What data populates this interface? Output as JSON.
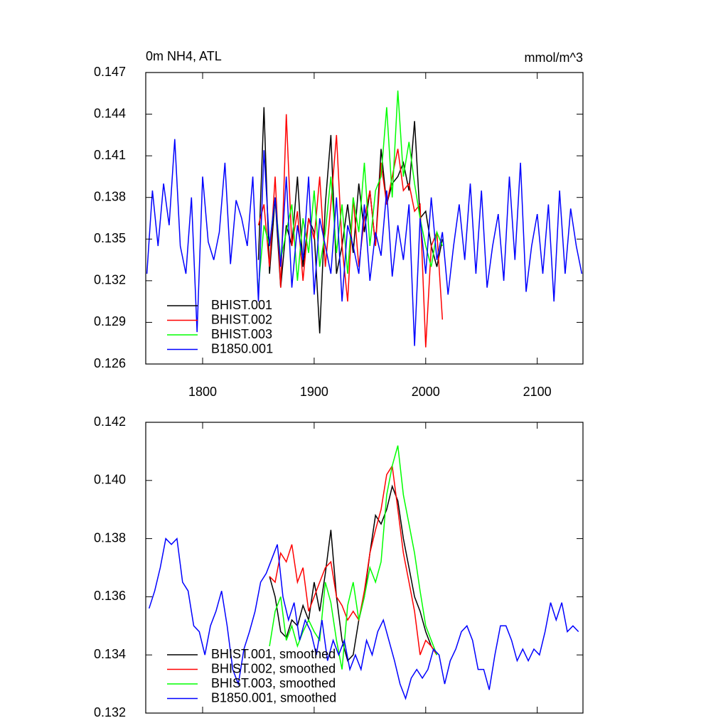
{
  "chart_data": [
    {
      "type": "line",
      "title": "0m NH4, ATL",
      "units": "mmol/m^3",
      "xlim": [
        1749,
        2141
      ],
      "ylim": [
        0.126,
        0.147
      ],
      "xticks": [
        1800,
        1900,
        2000,
        2100
      ],
      "yticks": [
        0.126,
        0.129,
        0.132,
        0.135,
        0.138,
        0.141,
        0.144,
        0.147
      ],
      "tick_labels_x": true,
      "legend": "lower left",
      "series": [
        {
          "name": "BHIST.001",
          "color": "#000000",
          "x": [
            1850,
            1855,
            1860,
            1865,
            1870,
            1875,
            1880,
            1885,
            1890,
            1895,
            1900,
            1905,
            1910,
            1915,
            1920,
            1925,
            1930,
            1935,
            1940,
            1945,
            1950,
            1955,
            1960,
            1965,
            1970,
            1975,
            1980,
            1985,
            1990,
            1995,
            2000,
            2005,
            2010,
            2015
          ],
          "values": [
            0.1335,
            0.1445,
            0.1325,
            0.138,
            0.1315,
            0.136,
            0.1345,
            0.1395,
            0.133,
            0.1365,
            0.1355,
            0.1282,
            0.1375,
            0.1425,
            0.1325,
            0.1345,
            0.1375,
            0.134,
            0.139,
            0.1355,
            0.1385,
            0.1345,
            0.1415,
            0.1375,
            0.139,
            0.1395,
            0.1405,
            0.1385,
            0.1435,
            0.1365,
            0.137,
            0.1345,
            0.133,
            0.135
          ]
        },
        {
          "name": "BHIST.002",
          "color": "#ff0000",
          "x": [
            1850,
            1855,
            1860,
            1865,
            1870,
            1875,
            1880,
            1885,
            1890,
            1895,
            1900,
            1905,
            1910,
            1915,
            1920,
            1925,
            1930,
            1935,
            1940,
            1945,
            1950,
            1955,
            1960,
            1965,
            1970,
            1975,
            1980,
            1985,
            1990,
            1995,
            2000,
            2005,
            2010,
            2015
          ],
          "values": [
            0.136,
            0.1375,
            0.133,
            0.1395,
            0.1315,
            0.144,
            0.1345,
            0.137,
            0.132,
            0.1365,
            0.135,
            0.1395,
            0.133,
            0.1375,
            0.1425,
            0.1345,
            0.1305,
            0.138,
            0.133,
            0.1365,
            0.1385,
            0.1345,
            0.1405,
            0.1375,
            0.1395,
            0.1415,
            0.1385,
            0.139,
            0.137,
            0.1375,
            0.1272,
            0.1345,
            0.1355,
            0.1292
          ]
        },
        {
          "name": "BHIST.003",
          "color": "#00ff00",
          "x": [
            1850,
            1855,
            1860,
            1865,
            1870,
            1875,
            1880,
            1885,
            1890,
            1895,
            1900,
            1905,
            1910,
            1915,
            1920,
            1925,
            1930,
            1935,
            1940,
            1945,
            1950,
            1955,
            1960,
            1965,
            1970,
            1975,
            1980,
            1985,
            1990,
            1995,
            2000,
            2005,
            2010,
            2015
          ],
          "values": [
            0.1315,
            0.136,
            0.1345,
            0.138,
            0.1335,
            0.1355,
            0.1375,
            0.132,
            0.1365,
            0.134,
            0.1385,
            0.133,
            0.1355,
            0.1395,
            0.134,
            0.1375,
            0.1325,
            0.138,
            0.1355,
            0.1405,
            0.1345,
            0.1385,
            0.1395,
            0.1445,
            0.138,
            0.1457,
            0.1395,
            0.142,
            0.139,
            0.1365,
            0.1345,
            0.133,
            0.1355,
            0.1345
          ]
        },
        {
          "name": "B1850.001",
          "color": "#0000ff",
          "x": [
            1750,
            1755,
            1760,
            1765,
            1770,
            1775,
            1780,
            1785,
            1790,
            1795,
            1800,
            1805,
            1810,
            1815,
            1820,
            1825,
            1830,
            1835,
            1840,
            1845,
            1850,
            1855,
            1860,
            1865,
            1870,
            1875,
            1880,
            1885,
            1890,
            1895,
            1900,
            1905,
            1910,
            1915,
            1920,
            1925,
            1930,
            1935,
            1940,
            1945,
            1950,
            1955,
            1960,
            1965,
            1970,
            1975,
            1980,
            1985,
            1990,
            1995,
            2000,
            2005,
            2010,
            2015,
            2020,
            2025,
            2030,
            2035,
            2040,
            2045,
            2050,
            2055,
            2060,
            2065,
            2070,
            2075,
            2080,
            2085,
            2090,
            2095,
            2100,
            2105,
            2110,
            2115,
            2120,
            2125,
            2130,
            2135,
            2140
          ],
          "values": [
            0.1325,
            0.1385,
            0.1345,
            0.139,
            0.136,
            0.1422,
            0.1345,
            0.1325,
            0.138,
            0.1283,
            0.1395,
            0.1348,
            0.1335,
            0.1355,
            0.1405,
            0.1332,
            0.1378,
            0.1365,
            0.1345,
            0.1395,
            0.1305,
            0.1414,
            0.1345,
            0.138,
            0.133,
            0.1395,
            0.1315,
            0.136,
            0.1335,
            0.1395,
            0.131,
            0.1365,
            0.1345,
            0.1325,
            0.138,
            0.1305,
            0.136,
            0.1345,
            0.1325,
            0.1375,
            0.132,
            0.1355,
            0.1338,
            0.1385,
            0.1323,
            0.136,
            0.1335,
            0.1375,
            0.1273,
            0.1365,
            0.1325,
            0.138,
            0.1335,
            0.1355,
            0.131,
            0.1345,
            0.1375,
            0.1335,
            0.139,
            0.1325,
            0.1385,
            0.1315,
            0.1345,
            0.1368,
            0.132,
            0.1395,
            0.1335,
            0.1405,
            0.1312,
            0.1345,
            0.1368,
            0.1325,
            0.1375,
            0.1305,
            0.1385,
            0.1325,
            0.1372,
            0.1345,
            0.1325
          ]
        }
      ]
    },
    {
      "type": "line",
      "xlim": [
        1749,
        2141
      ],
      "ylim": [
        0.132,
        0.142
      ],
      "xticks": [
        1800,
        1900,
        2000,
        2100
      ],
      "yticks": [
        0.132,
        0.134,
        0.136,
        0.138,
        {
          "value": 0.14,
          "label": "0.140"
        },
        0.142
      ],
      "tick_labels_x": false,
      "legend": "lower left",
      "series": [
        {
          "name": "BHIST.001, smoothed",
          "color": "#000000",
          "x": [
            1860,
            1865,
            1870,
            1875,
            1880,
            1885,
            1890,
            1895,
            1900,
            1905,
            1910,
            1915,
            1920,
            1925,
            1930,
            1935,
            1940,
            1945,
            1950,
            1955,
            1960,
            1965,
            1970,
            1975,
            1980,
            1985,
            1990,
            1995,
            2000,
            2005,
            2010
          ],
          "values": [
            0.1367,
            0.136,
            0.1348,
            0.1346,
            0.1352,
            0.135,
            0.1357,
            0.1352,
            0.1365,
            0.1355,
            0.1368,
            0.1383,
            0.136,
            0.1345,
            0.1338,
            0.134,
            0.1352,
            0.136,
            0.1375,
            0.1388,
            0.1385,
            0.139,
            0.1398,
            0.1393,
            0.138,
            0.137,
            0.136,
            0.1355,
            0.1348,
            0.1343,
            0.134
          ]
        },
        {
          "name": "BHIST.002, smoothed",
          "color": "#ff0000",
          "x": [
            1860,
            1865,
            1870,
            1875,
            1880,
            1885,
            1890,
            1895,
            1900,
            1905,
            1910,
            1915,
            1920,
            1925,
            1930,
            1935,
            1940,
            1945,
            1950,
            1955,
            1960,
            1965,
            1970,
            1975,
            1980,
            1985,
            1990,
            1995,
            2000,
            2005,
            2010
          ],
          "values": [
            0.1367,
            0.1365,
            0.1375,
            0.1372,
            0.1378,
            0.1365,
            0.137,
            0.1355,
            0.136,
            0.1365,
            0.137,
            0.1372,
            0.136,
            0.1357,
            0.1352,
            0.1355,
            0.1352,
            0.1362,
            0.1375,
            0.1383,
            0.139,
            0.1402,
            0.1405,
            0.139,
            0.1375,
            0.1365,
            0.1355,
            0.134,
            0.1345,
            0.1343,
            0.134
          ]
        },
        {
          "name": "BHIST.003, smoothed",
          "color": "#00ff00",
          "x": [
            1860,
            1865,
            1870,
            1875,
            1880,
            1885,
            1890,
            1895,
            1900,
            1905,
            1910,
            1915,
            1920,
            1925,
            1930,
            1935,
            1940,
            1945,
            1950,
            1955,
            1960,
            1965,
            1970,
            1975,
            1980,
            1985,
            1990,
            1995,
            2000,
            2005,
            2010
          ],
          "values": [
            0.1343,
            0.1355,
            0.136,
            0.1345,
            0.135,
            0.1343,
            0.1348,
            0.1352,
            0.1348,
            0.1345,
            0.1365,
            0.1358,
            0.1345,
            0.1335,
            0.1357,
            0.1365,
            0.1352,
            0.136,
            0.137,
            0.1365,
            0.1372,
            0.1395,
            0.1405,
            0.1412,
            0.1395,
            0.1385,
            0.1375,
            0.1362,
            0.135,
            0.1345,
            0.134
          ]
        },
        {
          "name": "B1850.001, smoothed",
          "color": "#0000ff",
          "x": [
            1752,
            1757,
            1762,
            1767,
            1772,
            1777,
            1782,
            1787,
            1792,
            1797,
            1802,
            1807,
            1812,
            1817,
            1822,
            1827,
            1832,
            1837,
            1842,
            1847,
            1852,
            1857,
            1862,
            1867,
            1872,
            1877,
            1882,
            1887,
            1892,
            1897,
            1902,
            1907,
            1912,
            1917,
            1922,
            1927,
            1932,
            1937,
            1942,
            1947,
            1952,
            1957,
            1962,
            1967,
            1972,
            1977,
            1982,
            1987,
            1992,
            1997,
            2002,
            2007,
            2012,
            2017,
            2022,
            2027,
            2032,
            2037,
            2042,
            2047,
            2052,
            2057,
            2062,
            2067,
            2072,
            2077,
            2082,
            2087,
            2092,
            2097,
            2102,
            2107,
            2112,
            2117,
            2122,
            2127,
            2132,
            2137
          ],
          "values": [
            0.1356,
            0.1362,
            0.137,
            0.138,
            0.1378,
            0.138,
            0.1365,
            0.1362,
            0.135,
            0.1348,
            0.134,
            0.135,
            0.1355,
            0.1362,
            0.135,
            0.1335,
            0.133,
            0.1342,
            0.1348,
            0.1355,
            0.1365,
            0.1368,
            0.1373,
            0.1378,
            0.136,
            0.1352,
            0.1358,
            0.1345,
            0.1352,
            0.1348,
            0.134,
            0.1352,
            0.1338,
            0.1345,
            0.134,
            0.1345,
            0.1335,
            0.134,
            0.1335,
            0.1345,
            0.134,
            0.1348,
            0.1352,
            0.1345,
            0.1338,
            0.133,
            0.1325,
            0.1332,
            0.1335,
            0.1332,
            0.1335,
            0.1342,
            0.134,
            0.133,
            0.1338,
            0.1342,
            0.1348,
            0.135,
            0.1345,
            0.1335,
            0.1335,
            0.1328,
            0.134,
            0.135,
            0.135,
            0.1345,
            0.1338,
            0.1342,
            0.1338,
            0.1342,
            0.134,
            0.1348,
            0.1358,
            0.1352,
            0.1358,
            0.1348,
            0.135,
            0.1348
          ]
        }
      ]
    }
  ]
}
